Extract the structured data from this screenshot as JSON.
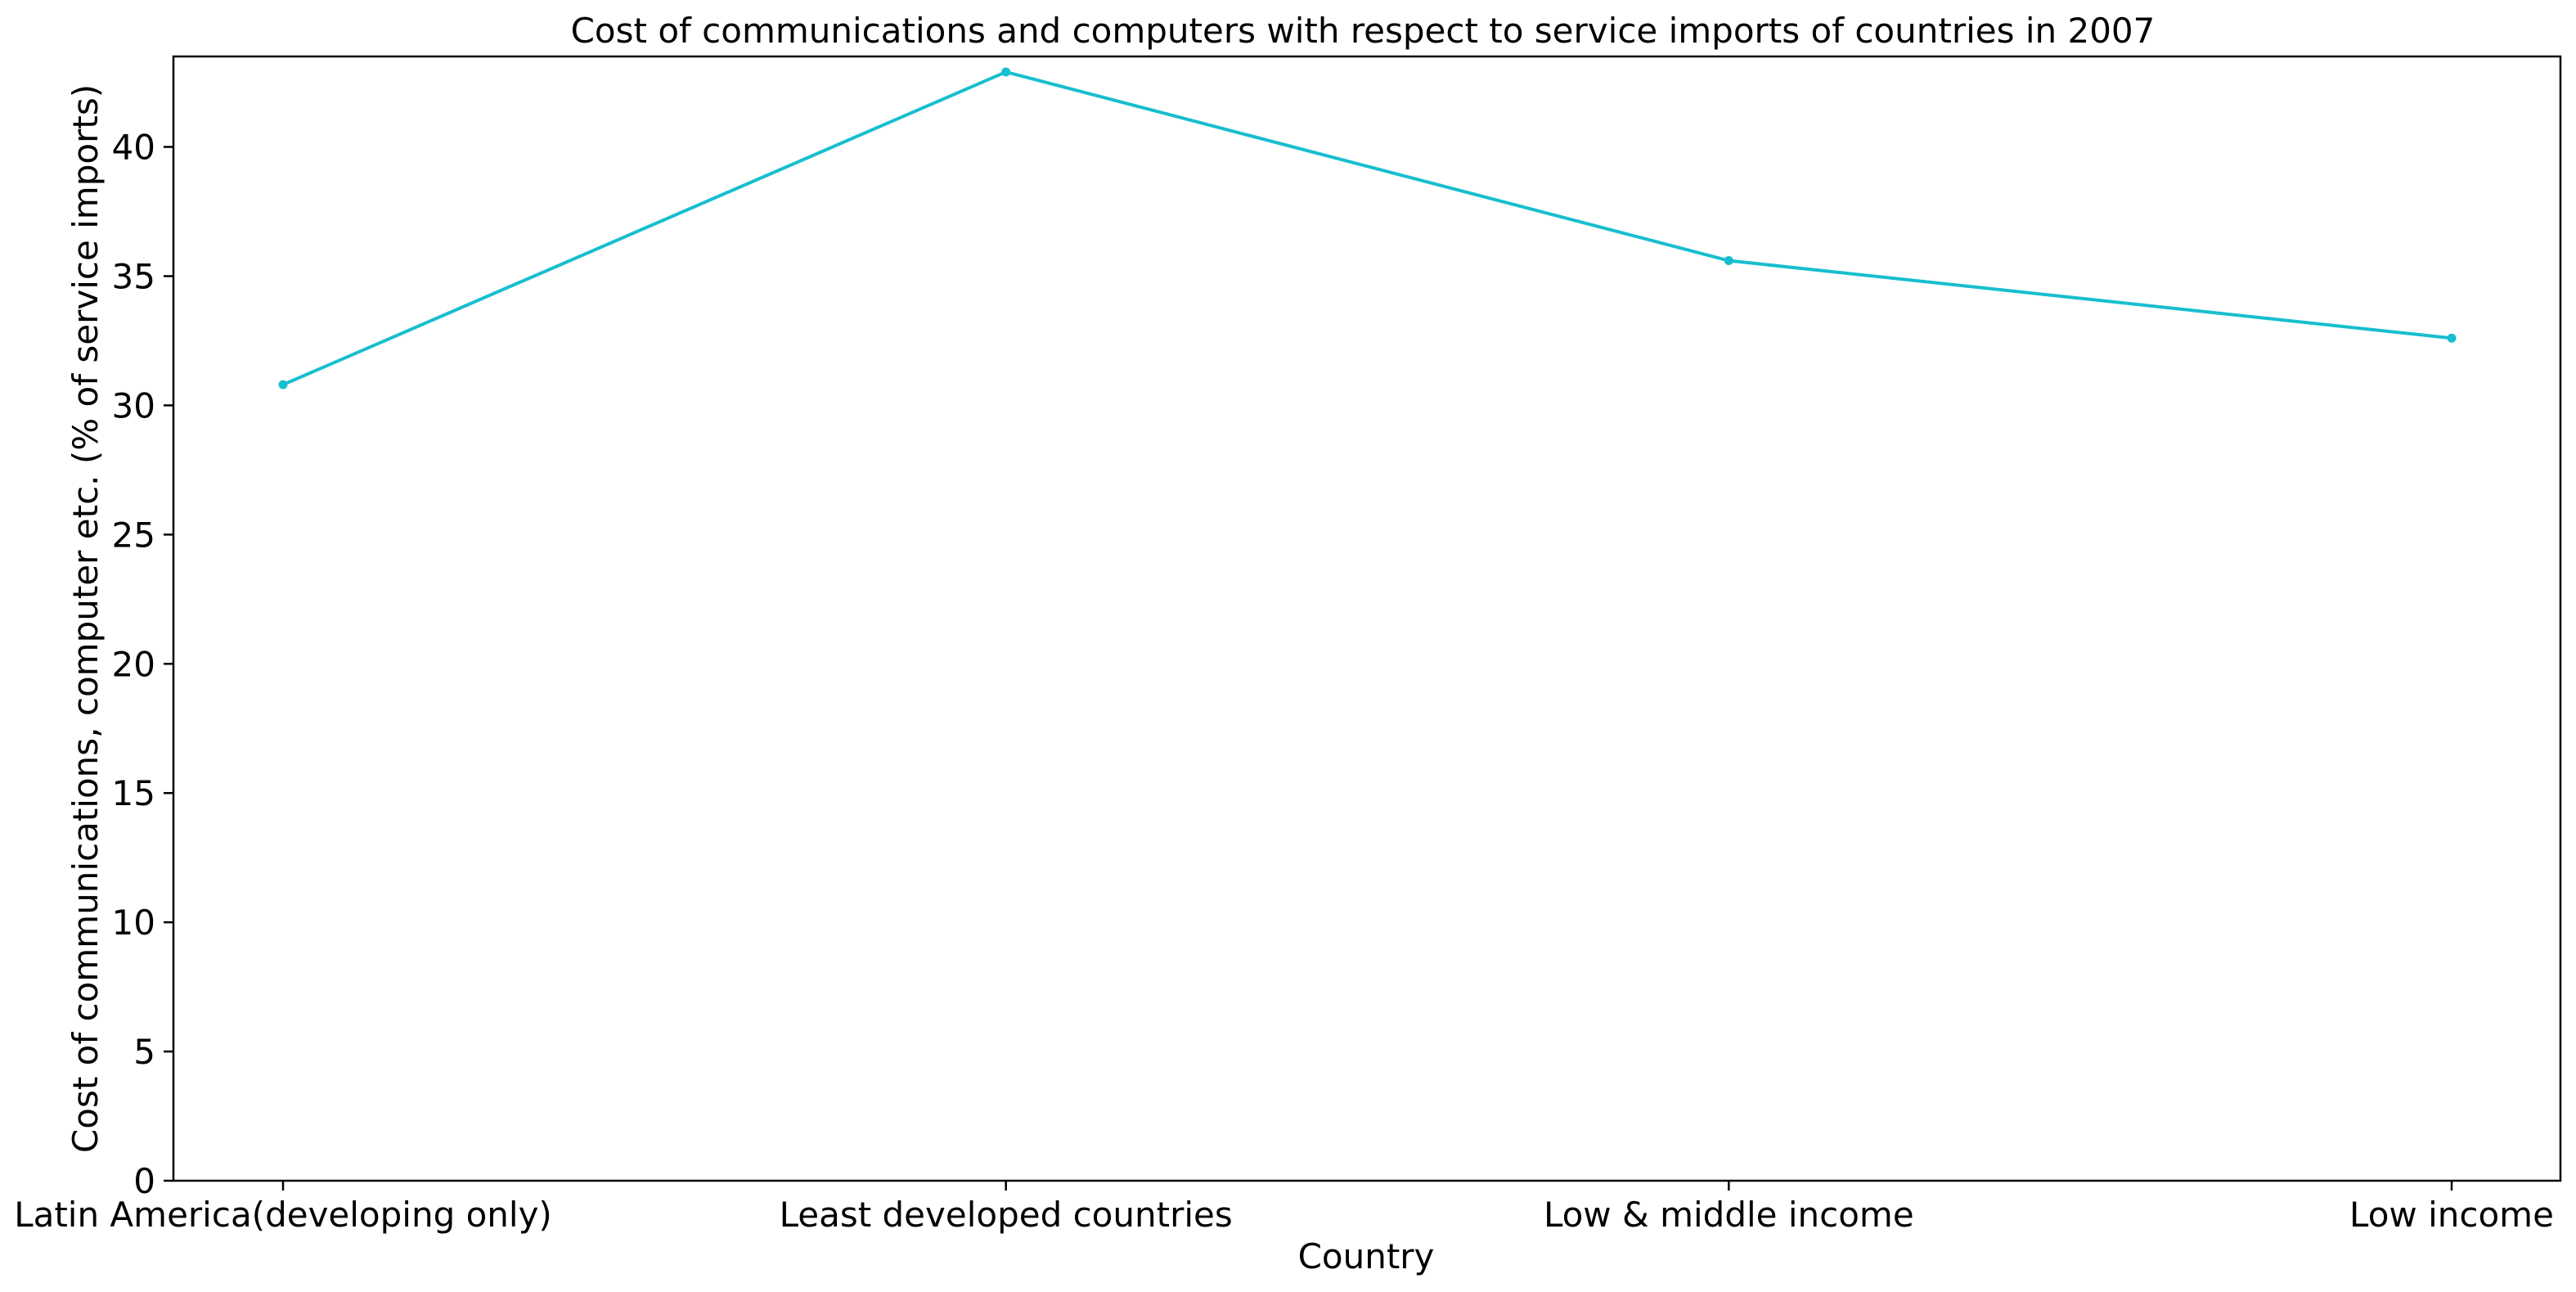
{
  "chart_data": {
    "type": "line",
    "title": "Cost of communications and computers with respect to service imports of countries in 2007",
    "xlabel": "Country",
    "ylabel": "Cost of communications, computer etc. (% of service imports)",
    "categories": [
      "Latin America(developing only)",
      "Least developed countries",
      "Low & middle income",
      "Low income"
    ],
    "series": [
      {
        "values": [
          30.8,
          42.9,
          35.6,
          32.6
        ],
        "color": "#17becf"
      }
    ],
    "ylim": [
      0,
      43.5
    ],
    "yticks": [
      0,
      5,
      10,
      15,
      20,
      25,
      30,
      35,
      40
    ],
    "grid": false,
    "legend": "none"
  }
}
